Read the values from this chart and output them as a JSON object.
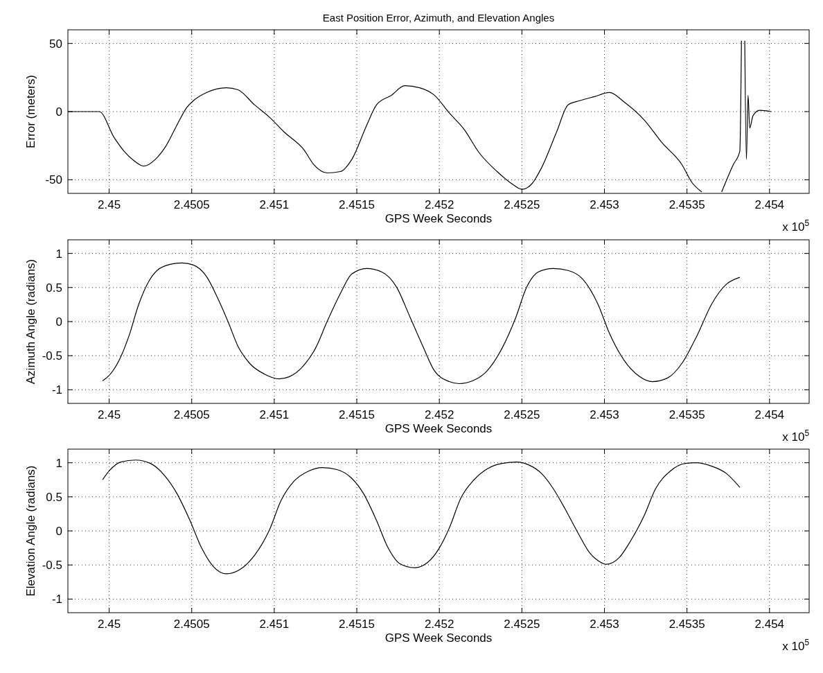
{
  "chart_data": [
    {
      "type": "line",
      "title": "East Position Error, Azimuth, and Elevation Angles",
      "xlabel": "GPS Week Seconds",
      "ylabel": "Error (meters)",
      "annotations": [
        "x 10$^{5}$"
      ],
      "grid": true,
      "xlim": [
        2.44975,
        2.45424
      ],
      "xticks": [
        2.45,
        2.4505,
        2.451,
        2.4515,
        2.452,
        2.4525,
        2.453,
        2.4535,
        2.454
      ],
      "ylim": [
        -60,
        60
      ],
      "yticks": [
        -50,
        0,
        50
      ],
      "series": [
        {
          "color": "#000000",
          "x": [
            2.44975,
            2.44994,
            2.45003,
            2.45009,
            2.45015,
            2.45021,
            2.45028,
            2.45034,
            2.45041,
            2.45047,
            2.45051,
            2.45059,
            2.45071,
            2.45078,
            2.45088,
            2.45097,
            2.45106,
            2.45118,
            2.45124,
            2.45132,
            2.4514,
            2.45147,
            2.45156,
            2.45162,
            2.45171,
            2.45179,
            2.45188,
            2.45197,
            2.45206,
            2.45215,
            2.45224,
            2.45235,
            2.45244,
            2.4525,
            2.45256,
            2.45262,
            2.45271,
            2.45278,
            2.45285,
            2.45294,
            2.45303,
            2.45312,
            2.45324,
            2.45335,
            2.45347,
            2.45353,
            2.45359,
            2.45363,
            2.45371,
            2.45378,
            2.45382,
            2.45383,
            2.45384,
            2.45385,
            2.45386,
            2.45387,
            2.45388,
            2.4539,
            2.45394,
            2.45401
          ],
          "values": [
            0,
            0,
            -19,
            -29,
            -36,
            -40,
            -35,
            -26,
            -10,
            3,
            8,
            14,
            17.5,
            16,
            5,
            -4,
            -15,
            -28,
            -39,
            -45,
            -44,
            -35,
            -10,
            5,
            12,
            19,
            17.5,
            12,
            -1,
            -13,
            -30,
            -44,
            -53,
            -57,
            -53,
            -41,
            -15,
            5,
            8,
            11,
            14,
            7,
            -6,
            -23,
            -39,
            -52,
            -59,
            null,
            -59,
            -39,
            -29,
            52,
            null,
            52,
            -35,
            12,
            -12,
            -3,
            1,
            0
          ]
        }
      ]
    },
    {
      "type": "line",
      "xlabel": "GPS Week Seconds",
      "ylabel": "Azimuth Angle (radians)",
      "annotations": [
        "x 10$^{5}$"
      ],
      "grid": true,
      "xlim": [
        2.44975,
        2.45424
      ],
      "xticks": [
        2.45,
        2.4505,
        2.451,
        2.4515,
        2.452,
        2.4525,
        2.453,
        2.4535,
        2.454
      ],
      "ylim": [
        -1.2,
        1.2
      ],
      "yticks": [
        -1,
        -0.5,
        0,
        0.5,
        1
      ],
      "series": [
        {
          "color": "#000000",
          "x": [
            2.44996,
            2.45,
            2.45006,
            2.45012,
            2.45018,
            2.45024,
            2.45029,
            2.45037,
            2.45044,
            2.45051,
            2.45059,
            2.45066,
            2.45072,
            2.45078,
            2.45085,
            2.45094,
            2.45103,
            2.45109,
            2.45118,
            2.45125,
            2.45132,
            2.4514,
            2.45147,
            2.45156,
            2.45165,
            2.45174,
            2.45182,
            2.4519,
            2.45197,
            2.45206,
            2.45212,
            2.45221,
            2.45229,
            2.45238,
            2.45246,
            2.45253,
            2.4526,
            2.45269,
            2.45278,
            2.45287,
            2.45296,
            2.45303,
            2.45312,
            2.45321,
            2.45329,
            2.45338,
            2.45347,
            2.45356,
            2.45365,
            2.45374,
            2.45382
          ],
          "values": [
            -0.87,
            -0.79,
            -0.57,
            -0.21,
            0.26,
            0.59,
            0.75,
            0.84,
            0.86,
            0.83,
            0.66,
            0.33,
            0,
            -0.36,
            -0.61,
            -0.77,
            -0.84,
            -0.81,
            -0.64,
            -0.39,
            0,
            0.41,
            0.7,
            0.78,
            0.73,
            0.51,
            0.08,
            -0.36,
            -0.72,
            -0.88,
            -0.91,
            -0.86,
            -0.72,
            -0.39,
            0.04,
            0.51,
            0.73,
            0.78,
            0.75,
            0.62,
            0.26,
            -0.17,
            -0.57,
            -0.8,
            -0.88,
            -0.83,
            -0.61,
            -0.21,
            0.26,
            0.55,
            0.65
          ]
        }
      ]
    },
    {
      "type": "line",
      "xlabel": "GPS Week Seconds",
      "ylabel": "Elevation Angle (radians)",
      "annotations": [
        "x 10$^{5}$"
      ],
      "grid": true,
      "xlim": [
        2.44975,
        2.45424
      ],
      "xticks": [
        2.45,
        2.4505,
        2.451,
        2.4515,
        2.452,
        2.4525,
        2.453,
        2.4535,
        2.454
      ],
      "ylim": [
        -1.2,
        1.2
      ],
      "yticks": [
        -1,
        -0.5,
        0,
        0.5,
        1
      ],
      "series": [
        {
          "color": "#000000",
          "x": [
            2.44996,
            2.45,
            2.45007,
            2.45016,
            2.45025,
            2.45034,
            2.45041,
            2.45049,
            2.45056,
            2.45063,
            2.45071,
            2.45079,
            2.45088,
            2.45097,
            2.45104,
            2.45112,
            2.45121,
            2.45129,
            2.45138,
            2.45147,
            2.45154,
            2.45162,
            2.45169,
            2.45176,
            2.45185,
            2.45193,
            2.452,
            2.45206,
            2.45213,
            2.45221,
            2.45229,
            2.45238,
            2.45247,
            2.45254,
            2.45262,
            2.45269,
            2.45276,
            2.45284,
            2.45291,
            2.45297,
            2.45301,
            2.45309,
            2.45316,
            2.45324,
            2.45331,
            2.4534,
            2.45349,
            2.45356,
            2.45365,
            2.45374,
            2.45382
          ],
          "values": [
            0.75,
            0.88,
            1.01,
            1.04,
            0.99,
            0.8,
            0.55,
            0.15,
            -0.25,
            -0.52,
            -0.63,
            -0.57,
            -0.36,
            0.01,
            0.44,
            0.73,
            0.88,
            0.93,
            0.9,
            0.77,
            0.55,
            0.15,
            -0.25,
            -0.48,
            -0.54,
            -0.46,
            -0.25,
            0.04,
            0.48,
            0.75,
            0.91,
            0.99,
            1.01,
            0.97,
            0.84,
            0.62,
            0.33,
            -0.03,
            -0.32,
            -0.45,
            -0.49,
            -0.39,
            -0.14,
            0.22,
            0.62,
            0.88,
            0.99,
            1.0,
            0.95,
            0.84,
            0.64
          ]
        }
      ]
    }
  ]
}
